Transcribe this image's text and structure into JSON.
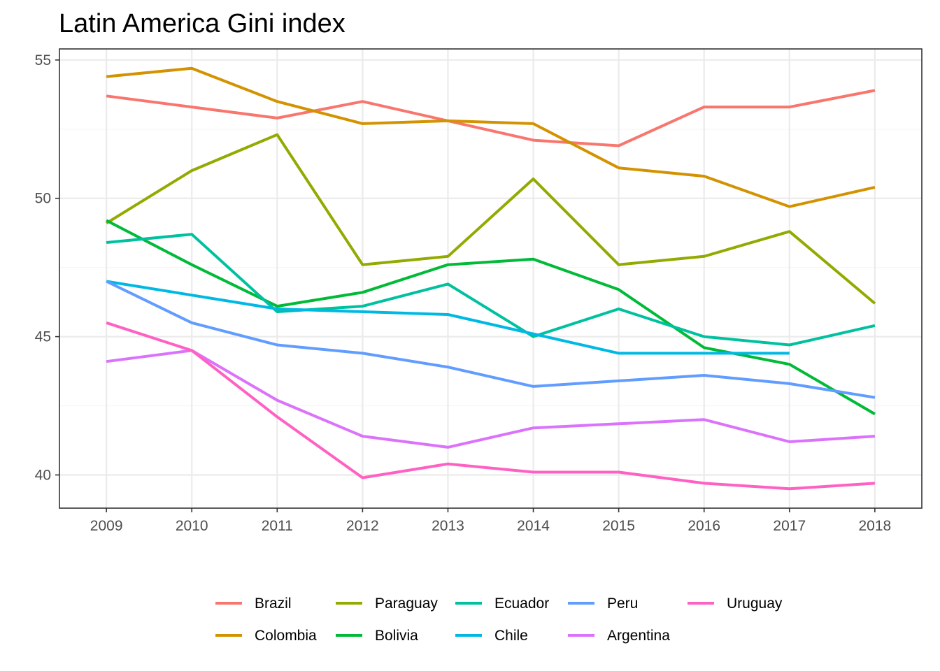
{
  "chart_data": {
    "type": "line",
    "title": "Latin America Gini index",
    "xlabel": "",
    "ylabel": "",
    "x": [
      2009,
      2010,
      2011,
      2012,
      2013,
      2014,
      2015,
      2016,
      2017,
      2018
    ],
    "xlim": [
      2008.45,
      2018.55
    ],
    "ylim": [
      38.8,
      55.4
    ],
    "yticks": [
      40,
      45,
      50,
      55
    ],
    "grid": true,
    "legend_position": "bottom",
    "series": [
      {
        "name": "Brazil",
        "color": "#F8766D",
        "values": [
          53.7,
          53.3,
          52.9,
          53.5,
          52.8,
          52.1,
          51.9,
          53.3,
          53.3,
          53.9
        ]
      },
      {
        "name": "Colombia",
        "color": "#D39200",
        "values": [
          54.4,
          54.7,
          53.5,
          52.7,
          52.8,
          52.7,
          51.1,
          50.8,
          49.7,
          50.4
        ]
      },
      {
        "name": "Paraguay",
        "color": "#93AA00",
        "values": [
          49.1,
          51.0,
          52.3,
          47.6,
          47.9,
          50.7,
          47.6,
          47.9,
          48.8,
          46.2
        ]
      },
      {
        "name": "Bolivia",
        "color": "#00BA38",
        "values": [
          49.2,
          47.6,
          46.1,
          46.6,
          47.6,
          47.8,
          46.7,
          44.6,
          44.0,
          42.2
        ]
      },
      {
        "name": "Ecuador",
        "color": "#00C19F",
        "values": [
          48.4,
          48.7,
          45.9,
          46.1,
          46.9,
          45.0,
          46.0,
          45.0,
          44.7,
          45.4
        ]
      },
      {
        "name": "Chile",
        "color": "#00B9E3",
        "values": [
          47.0,
          null,
          46.0,
          null,
          45.8,
          null,
          44.4,
          null,
          44.4,
          null
        ]
      },
      {
        "name": "Peru",
        "color": "#619CFF",
        "values": [
          47.0,
          45.5,
          44.7,
          44.4,
          43.9,
          43.2,
          43.4,
          43.6,
          43.3,
          42.8
        ]
      },
      {
        "name": "Argentina",
        "color": "#DB72FB",
        "values": [
          44.1,
          44.5,
          42.7,
          41.4,
          41.0,
          41.7,
          41.85,
          42.0,
          41.2,
          41.4
        ]
      },
      {
        "name": "Uruguay",
        "color": "#FF61C3",
        "values": [
          45.5,
          44.5,
          42.1,
          39.9,
          40.4,
          40.1,
          40.1,
          39.7,
          39.5,
          39.7
        ]
      }
    ]
  }
}
